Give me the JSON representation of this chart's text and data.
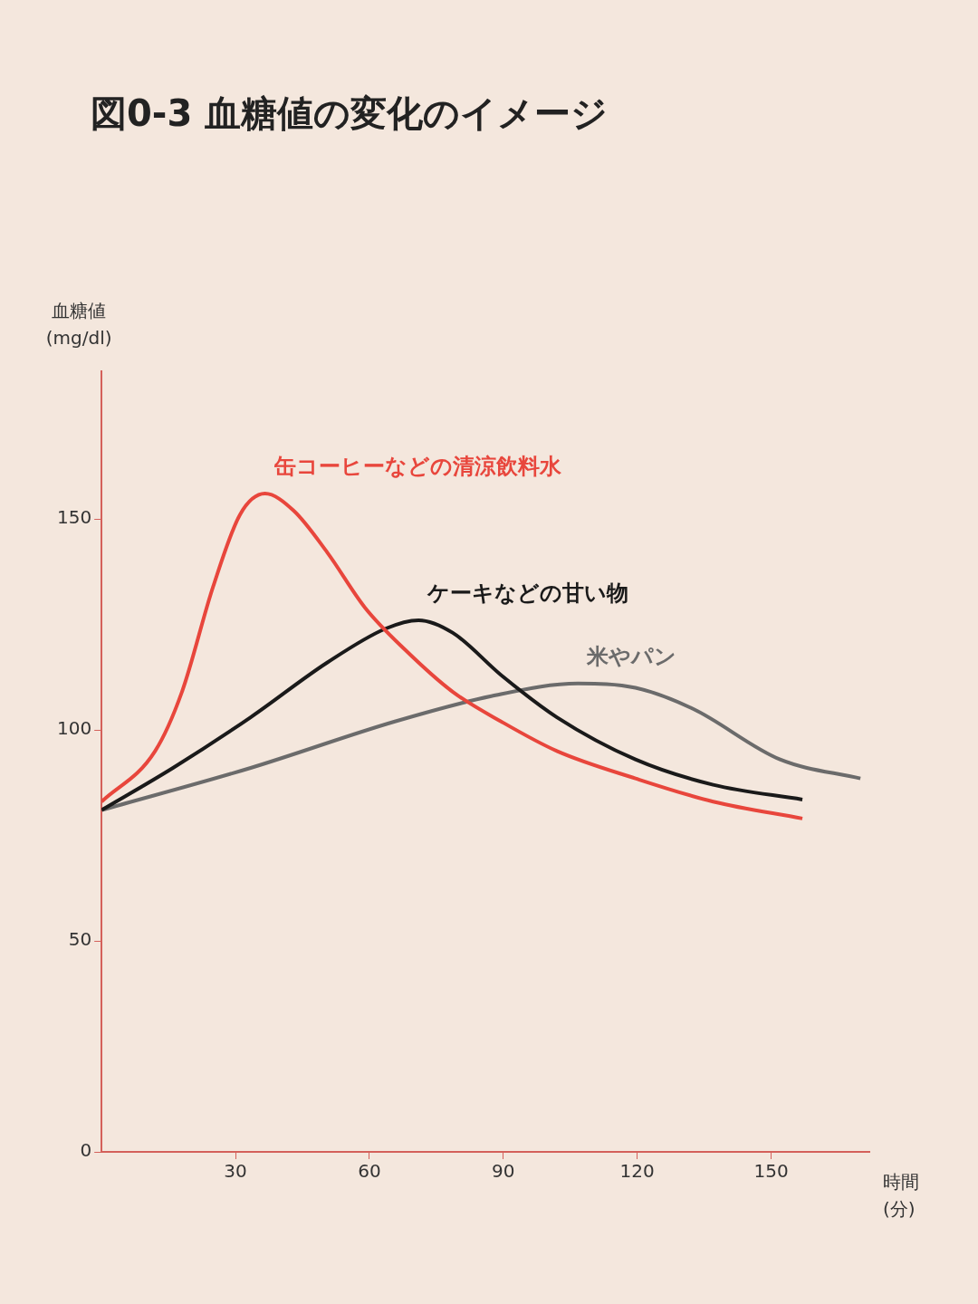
{
  "chart_data": {
    "type": "line",
    "title": "図0-3 血糖値の変化のイメージ",
    "xlabel": "時間\n(分)",
    "ylabel": "血糖値\n(mg/dl)",
    "xlim": [
      0,
      172
    ],
    "xticks": [
      30,
      60,
      90,
      120,
      150
    ],
    "ylim": [
      0,
      185
    ],
    "yticks": [
      0,
      50,
      100,
      150
    ],
    "grid": false,
    "legend": false,
    "marker": "none",
    "series": [
      {
        "name": "缶コーヒーなどの清涼飲料水",
        "color": "#e8463c",
        "x": [
          0,
          12,
          18,
          25,
          31,
          36.6,
          43,
          50.6,
          59,
          68,
          78.7,
          89.5,
          102,
          119.6,
          137,
          157
        ],
        "values": [
          83,
          95,
          109,
          134,
          151,
          156,
          152,
          142,
          129,
          119,
          109,
          102,
          95,
          88.5,
          83,
          79
        ]
      },
      {
        "name": "ケーキなどの甘い物",
        "color": "#1a1a1a",
        "x": [
          0,
          16,
          33.4,
          50.6,
          63.6,
          71,
          78.7,
          89.5,
          102,
          119.6,
          137,
          157
        ],
        "values": [
          81,
          91,
          103,
          116,
          124,
          126,
          123,
          113,
          103,
          93,
          87,
          83.5
        ]
      },
      {
        "name": "米やパン",
        "color": "#6b6b6b",
        "x": [
          0,
          33.4,
          65.7,
          87.3,
          106.7,
          119.6,
          132.5,
          152,
          170
        ],
        "values": [
          81,
          91,
          102,
          108,
          111,
          110,
          105,
          93,
          88.5
        ]
      }
    ]
  }
}
